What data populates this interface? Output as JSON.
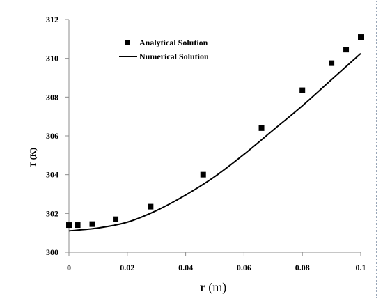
{
  "chart_data": {
    "type": "scatter",
    "title": "",
    "xlabel_bold": "r",
    "xlabel_rest": " (m)",
    "ylabel": "T (K)",
    "xlim": [
      0,
      0.1
    ],
    "ylim": [
      300,
      312
    ],
    "xticks": [
      "0",
      "0.02",
      "0.04",
      "0.06",
      "0.08",
      "0.1"
    ],
    "yticks": [
      "300",
      "302",
      "304",
      "306",
      "308",
      "310",
      "312"
    ],
    "grid": false,
    "legend_position": "top-left",
    "series": [
      {
        "name": "Analytical Solution",
        "kind": "markers",
        "marker": "square",
        "color": "#000000",
        "x": [
          0,
          0.003,
          0.008,
          0.016,
          0.028,
          0.046,
          0.066,
          0.08,
          0.09,
          0.095,
          0.1
        ],
        "y": [
          301.4,
          301.4,
          301.45,
          301.7,
          302.35,
          304.0,
          306.4,
          308.35,
          309.75,
          310.45,
          311.1
        ]
      },
      {
        "name": "Numerical Solution",
        "kind": "line",
        "color": "#000000",
        "x": [
          0,
          0.01,
          0.02,
          0.03,
          0.04,
          0.05,
          0.06,
          0.07,
          0.08,
          0.09,
          0.1
        ],
        "y": [
          301.1,
          301.25,
          301.55,
          302.15,
          302.95,
          303.9,
          305.05,
          306.3,
          307.55,
          308.9,
          310.25
        ]
      }
    ]
  }
}
